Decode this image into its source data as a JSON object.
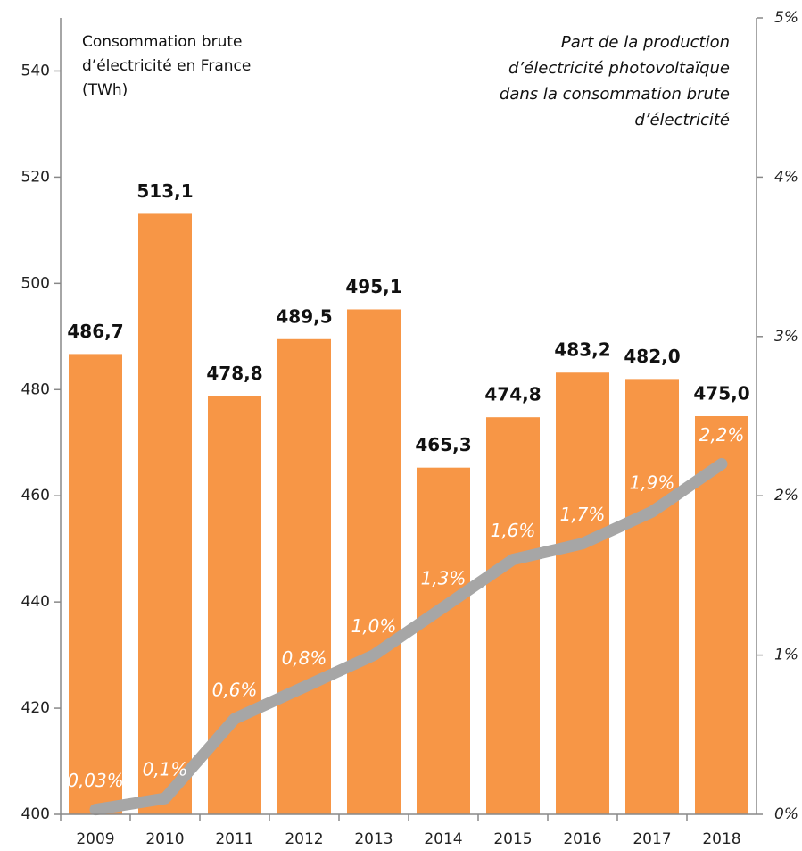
{
  "chart_data": {
    "type": "bar",
    "categories": [
      "2009",
      "2010",
      "2011",
      "2012",
      "2013",
      "2014",
      "2015",
      "2016",
      "2017",
      "2018"
    ],
    "series": [
      {
        "type": "bar",
        "color": "#f79646",
        "values": [
          486.7,
          513.1,
          478.8,
          489.5,
          495.1,
          465.3,
          474.8,
          483.2,
          482.0,
          475.0
        ],
        "value_labels": [
          "486,7",
          "513,1",
          "478,8",
          "489,5",
          "495,1",
          "465,3",
          "474,8",
          "483,2",
          "482,0",
          "475,0"
        ]
      },
      {
        "type": "line",
        "axis": "y2",
        "color": "#a6a6a6",
        "values": [
          0.03,
          0.1,
          0.6,
          0.8,
          1.0,
          1.3,
          1.6,
          1.7,
          1.9,
          2.2
        ],
        "value_labels": [
          "0,03%",
          "0,1%",
          "0,6%",
          "0,8%",
          "1,0%",
          "1,3%",
          "1,6%",
          "1,7%",
          "1,9%",
          "2,2%"
        ]
      }
    ],
    "ylim": [
      400,
      550
    ],
    "yticks": [
      400,
      420,
      440,
      460,
      480,
      500,
      520,
      540
    ],
    "y2lim": [
      0,
      5
    ],
    "y2ticks": [
      {
        "value": 0,
        "label": "0%"
      },
      {
        "value": 1,
        "label": "1%"
      },
      {
        "value": 2,
        "label": "2%"
      },
      {
        "value": 3,
        "label": "3%"
      },
      {
        "value": 4,
        "label": "4%"
      },
      {
        "value": 5,
        "label": "5%"
      }
    ],
    "annotations": {
      "left": [
        "Consommation brute",
        "d’électricité en France",
        "(TWh)"
      ],
      "right": [
        "Part de la production",
        "d’électricité photovoltaïque",
        "dans la consommation brute",
        "d’électricité"
      ]
    }
  }
}
